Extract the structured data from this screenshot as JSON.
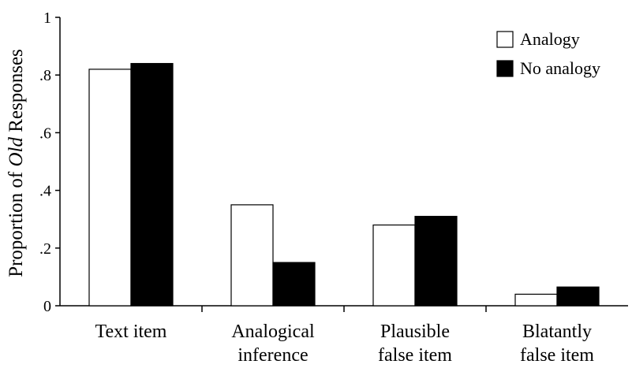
{
  "chart_data": {
    "type": "bar",
    "ylabel_prefix": "Proportion of ",
    "ylabel_italic": "Old",
    "ylabel_suffix": " Responses",
    "ylim": [
      0,
      1
    ],
    "yticks": [
      {
        "value": 0,
        "label": "0"
      },
      {
        "value": 0.2,
        "label": ".2"
      },
      {
        "value": 0.4,
        "label": ".4"
      },
      {
        "value": 0.6,
        "label": ".6"
      },
      {
        "value": 0.8,
        "label": ".8"
      },
      {
        "value": 1,
        "label": "1"
      }
    ],
    "categories": [
      {
        "lines": [
          "Text item"
        ]
      },
      {
        "lines": [
          "Analogical",
          "inference"
        ]
      },
      {
        "lines": [
          "Plausible",
          "false item"
        ]
      },
      {
        "lines": [
          "Blatantly",
          "false item"
        ]
      }
    ],
    "series": [
      {
        "name": "Analogy",
        "color": "#ffffff",
        "values": [
          0.82,
          0.35,
          0.28,
          0.04
        ]
      },
      {
        "name": "No analogy",
        "color": "#000000",
        "values": [
          0.84,
          0.15,
          0.31,
          0.065
        ]
      }
    ],
    "grid": false,
    "legend_position": "top-right"
  }
}
